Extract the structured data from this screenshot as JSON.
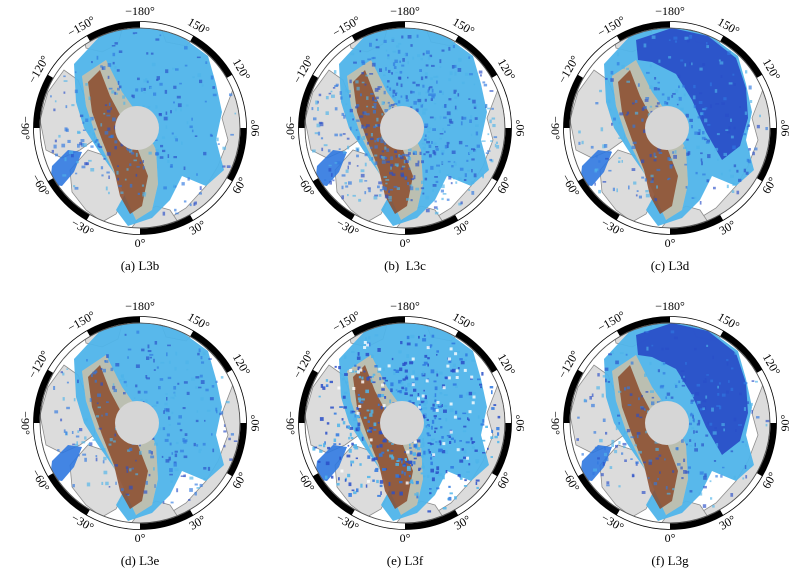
{
  "figure": {
    "longitude_labels": [
      "0°",
      "30°",
      "60°",
      "90°",
      "120°",
      "150°",
      "−180°",
      "−150°",
      "−120°",
      "−90°",
      "−60°",
      "−30°"
    ],
    "panels": [
      {
        "id": "a",
        "caption": "(a) L3b",
        "variant": "smooth-light-blue"
      },
      {
        "id": "b",
        "caption": "(b)  L3c",
        "variant": "speckled-blue"
      },
      {
        "id": "c",
        "caption": "(c) L3d",
        "variant": "dark-blue-pacific"
      },
      {
        "id": "d",
        "caption": "(d) L3e",
        "variant": "smooth-light-blue"
      },
      {
        "id": "e",
        "caption": "(e) L3f",
        "variant": "speckled-blue-sparse"
      },
      {
        "id": "f",
        "caption": "(f) L3g",
        "variant": "dark-blue-pacific"
      }
    ]
  },
  "colors": {
    "land": "#dcdcdc",
    "ocean": "#ffffff",
    "coast": "#8c8c8c",
    "pole_hole": "#d6d6d6",
    "ice_thick": "#8b4a2b",
    "ice_mid": "#d9a880",
    "ice_thin": "#9fdfee",
    "ice_light_blue": "#4fb4ea",
    "ice_blue": "#2f78e0",
    "ice_dark_blue": "#2a4fc8"
  }
}
